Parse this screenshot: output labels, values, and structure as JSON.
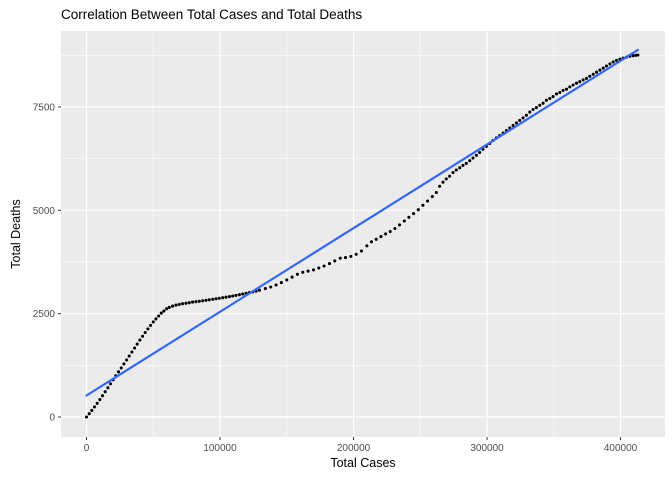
{
  "colors": {
    "panel_bg": "#EBEBEB",
    "grid": "#FFFFFF",
    "tick_mark": "#333333",
    "tick_label": "#4D4D4D",
    "axis_title": "#000000",
    "title": "#000000",
    "point": "#000000",
    "trend": "#3366FF"
  },
  "chart_data": {
    "type": "scatter",
    "title": "Correlation Between Total Cases and Total Deaths",
    "xlabel": "Total Cases",
    "ylabel": "Total Deaths",
    "x_ticks": [
      0,
      100000,
      200000,
      300000,
      400000
    ],
    "x_tick_labels": [
      "0",
      "100000",
      "200000",
      "300000",
      "400000"
    ],
    "y_ticks": [
      0,
      2500,
      5000,
      7500
    ],
    "y_tick_labels": [
      "0",
      "2500",
      "5000",
      "7500"
    ],
    "x_minor": [
      50000,
      150000,
      250000,
      350000
    ],
    "y_minor": [
      1250,
      3750,
      6250,
      8750
    ],
    "xlim": [
      -19100,
      433300
    ],
    "ylim": [
      -484,
      9337
    ],
    "grid": true,
    "legend": "none",
    "trend": {
      "type": "linear",
      "x1": 0,
      "y1": 520,
      "x2": 413000,
      "y2": 8880
    },
    "points": [
      [
        0,
        0
      ],
      [
        2000,
        80
      ],
      [
        4000,
        160
      ],
      [
        6000,
        244
      ],
      [
        8000,
        332
      ],
      [
        10000,
        420
      ],
      [
        12000,
        516
      ],
      [
        14000,
        612
      ],
      [
        16000,
        708
      ],
      [
        18000,
        804
      ],
      [
        20000,
        900
      ],
      [
        22000,
        996
      ],
      [
        24000,
        1092
      ],
      [
        26000,
        1188
      ],
      [
        28000,
        1284
      ],
      [
        30000,
        1380
      ],
      [
        32000,
        1476
      ],
      [
        34000,
        1572
      ],
      [
        36000,
        1668
      ],
      [
        38000,
        1764
      ],
      [
        40000,
        1860
      ],
      [
        42000,
        1952
      ],
      [
        44000,
        2044
      ],
      [
        46000,
        2132
      ],
      [
        48000,
        2216
      ],
      [
        50000,
        2300
      ],
      [
        52000,
        2372
      ],
      [
        54000,
        2444
      ],
      [
        56000,
        2512
      ],
      [
        58000,
        2564
      ],
      [
        60000,
        2620
      ],
      [
        62000,
        2650
      ],
      [
        64500,
        2683
      ],
      [
        67000,
        2707
      ],
      [
        69500,
        2724
      ],
      [
        72000,
        2740
      ],
      [
        74500,
        2752
      ],
      [
        77000,
        2765
      ],
      [
        79500,
        2778
      ],
      [
        82000,
        2788
      ],
      [
        84500,
        2798
      ],
      [
        87000,
        2810
      ],
      [
        89500,
        2823
      ],
      [
        92000,
        2835
      ],
      [
        94500,
        2847
      ],
      [
        97000,
        2860
      ],
      [
        99500,
        2872
      ],
      [
        102000,
        2885
      ],
      [
        104500,
        2898
      ],
      [
        107000,
        2912
      ],
      [
        109500,
        2927
      ],
      [
        112000,
        2942
      ],
      [
        114500,
        2957
      ],
      [
        117000,
        2974
      ],
      [
        119500,
        2992
      ],
      [
        122000,
        3009
      ],
      [
        124500,
        3026
      ],
      [
        127000,
        3046
      ],
      [
        129500,
        3066
      ],
      [
        134000,
        3106
      ],
      [
        138000,
        3145
      ],
      [
        142000,
        3193
      ],
      [
        146000,
        3251
      ],
      [
        150000,
        3315
      ],
      [
        154000,
        3383
      ],
      [
        158000,
        3451
      ],
      [
        162000,
        3499
      ],
      [
        166000,
        3528
      ],
      [
        170000,
        3557
      ],
      [
        174000,
        3603
      ],
      [
        178000,
        3653
      ],
      [
        182000,
        3711
      ],
      [
        186000,
        3776
      ],
      [
        190000,
        3840
      ],
      [
        194000,
        3856
      ],
      [
        198000,
        3884
      ],
      [
        202000,
        3935
      ],
      [
        206000,
        4015
      ],
      [
        210000,
        4140
      ],
      [
        213500,
        4237
      ],
      [
        217000,
        4299
      ],
      [
        220500,
        4364
      ],
      [
        224000,
        4430
      ],
      [
        227500,
        4487
      ],
      [
        231000,
        4560
      ],
      [
        234500,
        4647
      ],
      [
        238000,
        4740
      ],
      [
        241500,
        4830
      ],
      [
        245000,
        4920
      ],
      [
        248500,
        5015
      ],
      [
        252000,
        5120
      ],
      [
        255500,
        5225
      ],
      [
        259000,
        5330
      ],
      [
        262000,
        5430
      ],
      [
        264500,
        5580
      ],
      [
        267000,
        5680
      ],
      [
        269500,
        5760
      ],
      [
        272000,
        5825
      ],
      [
        274500,
        5915
      ],
      [
        277000,
        5975
      ],
      [
        279500,
        6030
      ],
      [
        282000,
        6085
      ],
      [
        284500,
        6135
      ],
      [
        287000,
        6200
      ],
      [
        289500,
        6265
      ],
      [
        292000,
        6330
      ],
      [
        294500,
        6398
      ],
      [
        297000,
        6475
      ],
      [
        299500,
        6545
      ],
      [
        302000,
        6615
      ],
      [
        304500,
        6688
      ],
      [
        307000,
        6750
      ],
      [
        309500,
        6808
      ],
      [
        312000,
        6870
      ],
      [
        314500,
        6930
      ],
      [
        317000,
        6992
      ],
      [
        319500,
        7053
      ],
      [
        322000,
        7115
      ],
      [
        324500,
        7174
      ],
      [
        327000,
        7235
      ],
      [
        329500,
        7298
      ],
      [
        332000,
        7375
      ],
      [
        334500,
        7440
      ],
      [
        337000,
        7485
      ],
      [
        339500,
        7540
      ],
      [
        342000,
        7590
      ],
      [
        344500,
        7660
      ],
      [
        347000,
        7705
      ],
      [
        349500,
        7750
      ],
      [
        352000,
        7815
      ],
      [
        354500,
        7850
      ],
      [
        357000,
        7900
      ],
      [
        359500,
        7930
      ],
      [
        362000,
        7985
      ],
      [
        364500,
        8030
      ],
      [
        367000,
        8075
      ],
      [
        369500,
        8110
      ],
      [
        372000,
        8155
      ],
      [
        374500,
        8190
      ],
      [
        377000,
        8240
      ],
      [
        379500,
        8290
      ],
      [
        382000,
        8340
      ],
      [
        384500,
        8390
      ],
      [
        387000,
        8440
      ],
      [
        389500,
        8490
      ],
      [
        392000,
        8540
      ],
      [
        394500,
        8590
      ],
      [
        397000,
        8625
      ],
      [
        399500,
        8655
      ],
      [
        402000,
        8680
      ],
      [
        404500,
        8705
      ],
      [
        407000,
        8725
      ],
      [
        409500,
        8740
      ],
      [
        411500,
        8750
      ],
      [
        413000,
        8757
      ]
    ]
  }
}
